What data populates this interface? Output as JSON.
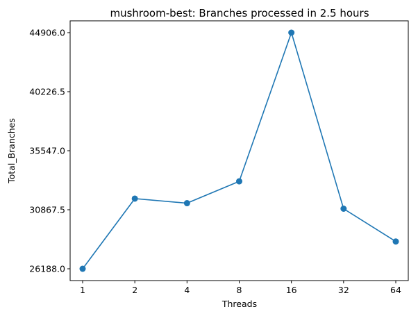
{
  "chart_data": {
    "type": "line",
    "title": "mushroom-best: Branches processed in 2.5 hours",
    "xlabel": "Threads",
    "ylabel": "Total_Branches",
    "categories": [
      "1",
      "2",
      "4",
      "8",
      "16",
      "32",
      "64"
    ],
    "values": [
      26188,
      31750,
      31390,
      33120,
      44906,
      30950,
      28350
    ],
    "yticks": [
      "26188.0",
      "30867.5",
      "35547.0",
      "40226.5",
      "44906.0"
    ],
    "ylim": [
      25252,
      45842
    ],
    "grid": false,
    "color": "#1f77b4"
  }
}
